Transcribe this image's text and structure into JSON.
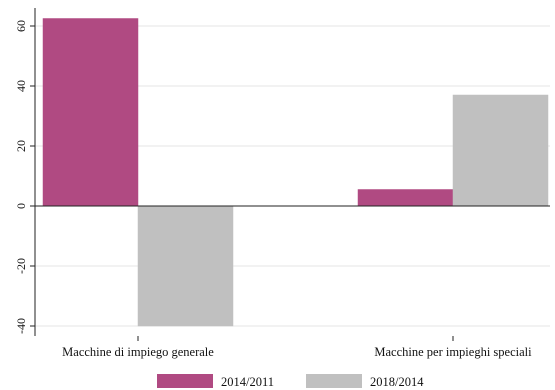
{
  "chart_data": {
    "type": "bar",
    "categories": [
      "Macchine di impiego generale",
      "Macchine per impieghi speciali"
    ],
    "series": [
      {
        "name": "2014/2011",
        "values": [
          62.5,
          5.5
        ],
        "color": "#b04a82"
      },
      {
        "name": "2018/2014",
        "values": [
          -40,
          37
        ],
        "color": "#c0c0c0"
      }
    ],
    "ylim": [
      -40,
      60
    ],
    "yticks": [
      "-40",
      "-20",
      "0",
      "20",
      "40",
      "60"
    ],
    "grid": true,
    "legend": "bottom"
  }
}
